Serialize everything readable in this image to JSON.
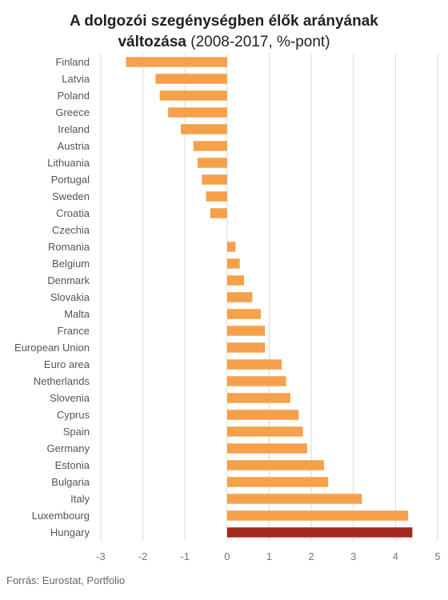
{
  "title": {
    "line1": "A dolgozói szegénységben élők arányának",
    "line2_bold": "változása",
    "line2_normal": " (2008-2017, %-pont)"
  },
  "source": "Forrás: Eurostat, Portfolio",
  "colors": {
    "bar": "#f5a04b",
    "highlight": "#a32a1e",
    "grid": "#d9d9d9"
  },
  "chart_data": {
    "type": "bar",
    "orientation": "horizontal",
    "categories": [
      "Finland",
      "Latvia",
      "Poland",
      "Greece",
      "Ireland",
      "Austria",
      "Lithuania",
      "Portugal",
      "Sweden",
      "Croatia",
      "Czechia",
      "Romania",
      "Belgium",
      "Denmark",
      "Slovakia",
      "Malta",
      "France",
      "European Union",
      "Euro area",
      "Netherlands",
      "Slovenia",
      "Cyprus",
      "Spain",
      "Germany",
      "Estonia",
      "Bulgaria",
      "Italy",
      "Luxembourg",
      "Hungary"
    ],
    "values": [
      -2.4,
      -1.7,
      -1.6,
      -1.4,
      -1.1,
      -0.8,
      -0.7,
      -0.6,
      -0.5,
      -0.4,
      0,
      0.2,
      0.3,
      0.4,
      0.6,
      0.8,
      0.9,
      0.9,
      1.3,
      1.4,
      1.5,
      1.7,
      1.8,
      1.9,
      2.3,
      2.4,
      3.2,
      4.3,
      4.4
    ],
    "highlight": "Hungary",
    "xlim": [
      -3,
      5
    ],
    "xticks": [
      -3,
      -2,
      -1,
      0,
      1,
      2,
      3,
      4,
      5
    ],
    "grid": "vertical",
    "xlabel": "",
    "ylabel": ""
  }
}
